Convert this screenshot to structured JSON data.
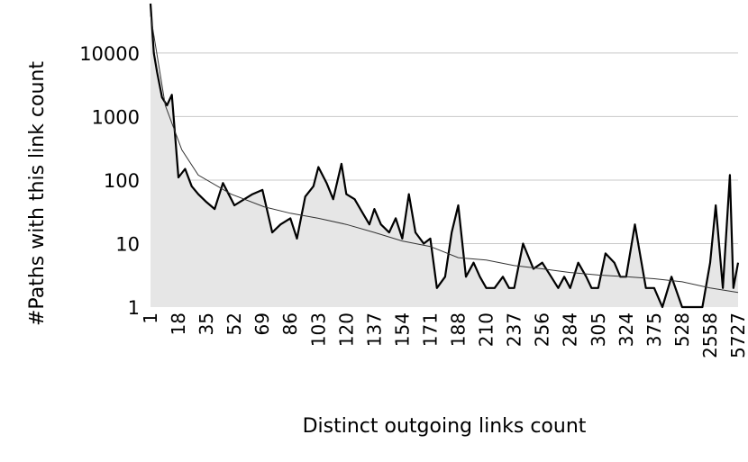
{
  "chart_data": {
    "type": "area",
    "xlabel": "Distinct outgoing links count",
    "ylabel": "#Paths with this link count",
    "y_scale": "log",
    "ylim": [
      1,
      60000
    ],
    "y_ticks": [
      1,
      10,
      100,
      1000,
      10000
    ],
    "y_tick_labels": [
      "1",
      "10",
      "100",
      "1000",
      "10000"
    ],
    "x_tick_labels": [
      "1",
      "18",
      "35",
      "52",
      "69",
      "86",
      "103",
      "120",
      "137",
      "154",
      "171",
      "188",
      "210",
      "237",
      "256",
      "284",
      "305",
      "324",
      "375",
      "528",
      "2558",
      "5727"
    ],
    "grid": {
      "horizontal": true,
      "vertical": false
    },
    "legend": "none",
    "colors": {
      "area_fill": "#e6e6e6",
      "series_line": "#000000",
      "trendline": "#333333",
      "grid": "#c8c8c8"
    },
    "series": [
      {
        "x": [
          1,
          2,
          3,
          5,
          8,
          11,
          14,
          18,
          22,
          26,
          30,
          35,
          40,
          45,
          52,
          58,
          63,
          69,
          75,
          80,
          86,
          90,
          95,
          100,
          103,
          108,
          112,
          117,
          120,
          125,
          130,
          134,
          137,
          141,
          146,
          150,
          154,
          158,
          162,
          167,
          171,
          175,
          180,
          184,
          188,
          194,
          200,
          205,
          210,
          218,
          226,
          232,
          237,
          243,
          250,
          256,
          265,
          272,
          278,
          284,
          290,
          296,
          300,
          305,
          310,
          316,
          320,
          324,
          340,
          360,
          375,
          420,
          470,
          528,
          900,
          1500,
          2000,
          2558,
          3200,
          4000,
          4800,
          5200,
          5727
        ],
        "values": [
          60000,
          25000,
          10000,
          5000,
          2000,
          1500,
          2200,
          110,
          150,
          80,
          60,
          45,
          35,
          90,
          40,
          50,
          60,
          70,
          15,
          20,
          25,
          12,
          55,
          80,
          160,
          90,
          50,
          180,
          60,
          50,
          30,
          20,
          35,
          20,
          15,
          25,
          12,
          60,
          15,
          10,
          12,
          2,
          3,
          15,
          40,
          3,
          5,
          3,
          2,
          2,
          3,
          2,
          2,
          10,
          4,
          5,
          3,
          2,
          3,
          2,
          5,
          3,
          2,
          2,
          7,
          5,
          3,
          3,
          20,
          2,
          2,
          1,
          3,
          1,
          1,
          1,
          1,
          5,
          40,
          2,
          120,
          2,
          5
        ]
      }
    ],
    "trendline": {
      "type": "power",
      "x": [
        1,
        10,
        20,
        30,
        50,
        70,
        86,
        103,
        120,
        137,
        154,
        171,
        188,
        210,
        237,
        256,
        284,
        305,
        324,
        375,
        528,
        2558,
        5727
      ],
      "values": [
        40000,
        1500,
        300,
        120,
        60,
        38,
        30,
        25,
        20,
        15,
        11,
        9,
        6,
        5.5,
        4.5,
        4,
        3.5,
        3.2,
        3,
        2.8,
        2.5,
        2,
        1.7
      ]
    }
  }
}
